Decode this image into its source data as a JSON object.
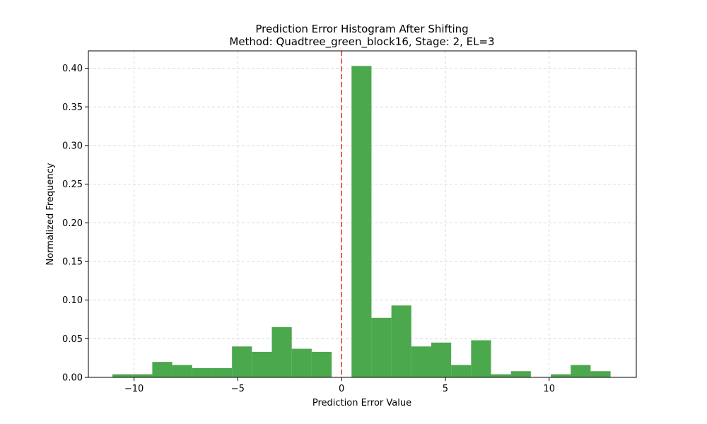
{
  "chart_data": {
    "type": "bar",
    "title": "Prediction Error Histogram After Shifting",
    "subtitle": "Method: Quadtree_green_block16, Stage: 2, EL=3",
    "xlabel": "Prediction Error Value",
    "ylabel": "Normalized Frequency",
    "xlim": [
      -12.2,
      14.2
    ],
    "ylim": [
      0,
      0.4225
    ],
    "xticks": [
      -10,
      -5,
      0,
      5,
      10
    ],
    "xtick_labels": [
      "−10",
      "−5",
      "0",
      "5",
      "10"
    ],
    "yticks": [
      0.0,
      0.05,
      0.1,
      0.15,
      0.2,
      0.25,
      0.3,
      0.35,
      0.4
    ],
    "ytick_labels": [
      "0.00",
      "0.05",
      "0.10",
      "0.15",
      "0.20",
      "0.25",
      "0.30",
      "0.35",
      "0.40"
    ],
    "grid": true,
    "bin_width": 0.96,
    "bins": [
      {
        "x_start": -11.04,
        "value": 0.004
      },
      {
        "x_start": -10.08,
        "value": 0.004
      },
      {
        "x_start": -9.12,
        "value": 0.02
      },
      {
        "x_start": -8.16,
        "value": 0.016
      },
      {
        "x_start": -7.2,
        "value": 0.012
      },
      {
        "x_start": -6.24,
        "value": 0.012
      },
      {
        "x_start": -5.28,
        "value": 0.04
      },
      {
        "x_start": -4.32,
        "value": 0.033
      },
      {
        "x_start": -3.36,
        "value": 0.065
      },
      {
        "x_start": -2.4,
        "value": 0.037
      },
      {
        "x_start": -1.44,
        "value": 0.033
      },
      {
        "x_start": -0.48,
        "value": 0.0
      },
      {
        "x_start": 0.48,
        "value": 0.403
      },
      {
        "x_start": 1.44,
        "value": 0.077
      },
      {
        "x_start": 2.4,
        "value": 0.093
      },
      {
        "x_start": 3.36,
        "value": 0.04
      },
      {
        "x_start": 4.32,
        "value": 0.045
      },
      {
        "x_start": 5.28,
        "value": 0.016
      },
      {
        "x_start": 6.24,
        "value": 0.048
      },
      {
        "x_start": 7.2,
        "value": 0.004
      },
      {
        "x_start": 8.16,
        "value": 0.008
      },
      {
        "x_start": 9.12,
        "value": 0.0
      },
      {
        "x_start": 10.08,
        "value": 0.004
      },
      {
        "x_start": 11.04,
        "value": 0.016
      },
      {
        "x_start": 12.0,
        "value": 0.008
      }
    ],
    "reference_line": {
      "x": 0,
      "style": "dashed",
      "color": "#e8393b"
    },
    "colors": {
      "bar": "#4ca84c",
      "grid": "#d9d9d9",
      "axis": "#000000"
    }
  }
}
